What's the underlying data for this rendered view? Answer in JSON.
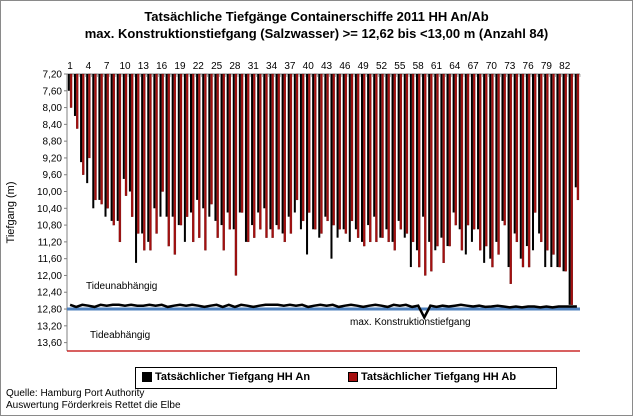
{
  "chart_data": {
    "type": "bar",
    "title": "Tatsächliche Tiefgänge Containerschiffe  2011 HH An/Ab",
    "subtitle": "max. Konstruktionstiefgang  (Salzwasser) >= 12,62 bis <13,00 m (Anzahl 84)",
    "ylabel": "Tiefgang (m)",
    "ylim": [
      7.2,
      13.8
    ],
    "y_inverted": true,
    "y_ticks": [
      "7,20",
      "7,60",
      "8,00",
      "8,40",
      "8,80",
      "9,20",
      "9,60",
      "10,00",
      "10,40",
      "10,80",
      "11,20",
      "11,60",
      "12,00",
      "12,40",
      "12,80",
      "13,20",
      "13,60"
    ],
    "x_ticks": [
      "1",
      "4",
      "7",
      "10",
      "13",
      "16",
      "19",
      "22",
      "25",
      "28",
      "31",
      "34",
      "37",
      "40",
      "43",
      "46",
      "49",
      "52",
      "55",
      "58",
      "61",
      "64",
      "67",
      "70",
      "73",
      "76",
      "79",
      "82"
    ],
    "categories": [
      1,
      2,
      3,
      4,
      5,
      6,
      7,
      8,
      9,
      10,
      11,
      12,
      13,
      14,
      15,
      16,
      17,
      18,
      19,
      20,
      21,
      22,
      23,
      24,
      25,
      26,
      27,
      28,
      29,
      30,
      31,
      32,
      33,
      34,
      35,
      36,
      37,
      38,
      39,
      40,
      41,
      42,
      43,
      44,
      45,
      46,
      47,
      48,
      49,
      50,
      51,
      52,
      53,
      54,
      55,
      56,
      57,
      58,
      59,
      60,
      61,
      62,
      63,
      64,
      65,
      66,
      67,
      68,
      69,
      70,
      71,
      72,
      73,
      74,
      75,
      76,
      77,
      78,
      79,
      80,
      81,
      82,
      83,
      84
    ],
    "series": [
      {
        "name": "Tatsächlicher Tiefgang HH An",
        "color": "#000000",
        "values": [
          7.6,
          8.2,
          9.3,
          9.8,
          10.4,
          10.2,
          10.6,
          10.7,
          10.7,
          9.7,
          10.0,
          11.7,
          11.0,
          11.2,
          10.4,
          10.6,
          10.6,
          10.6,
          10.8,
          11.2,
          10.5,
          10.2,
          10.4,
          10.6,
          10.7,
          10.8,
          10.5,
          10.9,
          10.5,
          11.2,
          10.8,
          10.5,
          10.4,
          10.9,
          10.8,
          11.0,
          10.6,
          10.5,
          10.9,
          11.5,
          10.9,
          11.1,
          10.6,
          11.6,
          11.1,
          10.9,
          11.2,
          10.9,
          11.2,
          10.8,
          10.6,
          11.1,
          10.9,
          11.2,
          10.7,
          11.1,
          11.8,
          11.4,
          10.6,
          11.2,
          11.4,
          11.1,
          11.3,
          10.5,
          10.9,
          11.5,
          11.2,
          10.9,
          11.7,
          11.6,
          11.2,
          10.7,
          11.8,
          11.0,
          11.6,
          11.3,
          11.4,
          11.0,
          11.8,
          11.8,
          11.8,
          11.9,
          12.7,
          9.9
        ]
      },
      {
        "name": "Tatsächlicher Tiefgang HH Ab",
        "color": "#a50f0f",
        "values": [
          8.0,
          8.5,
          9.6,
          9.2,
          10.2,
          10.3,
          10.4,
          10.8,
          11.2,
          10.1,
          10.6,
          11.0,
          11.4,
          11.4,
          11.0,
          10.0,
          11.3,
          11.5,
          10.8,
          10.6,
          11.2,
          11.1,
          11.4,
          10.3,
          11.1,
          11.4,
          10.9,
          12.0,
          10.5,
          11.2,
          11.1,
          10.9,
          11.1,
          11.1,
          10.9,
          11.2,
          11.0,
          10.2,
          10.7,
          10.5,
          10.9,
          11.0,
          10.7,
          10.8,
          10.9,
          11.0,
          10.7,
          11.1,
          11.3,
          11.2,
          11.2,
          11.1,
          11.2,
          11.4,
          10.9,
          11.0,
          11.2,
          11.8,
          12.0,
          11.9,
          11.3,
          11.7,
          11.3,
          10.8,
          11.4,
          10.8,
          10.9,
          11.4,
          11.3,
          11.8,
          11.5,
          10.8,
          12.2,
          11.2,
          11.8,
          11.8,
          10.5,
          11.2,
          11.4,
          11.5,
          11.8,
          11.9,
          12.7,
          10.2
        ]
      }
    ],
    "lines": [
      {
        "name": "Tideunabhängig",
        "color": "#000000",
        "values": [
          12.7,
          12.75,
          12.7,
          12.72,
          12.75,
          12.7,
          12.72,
          12.7,
          12.7,
          12.72,
          12.7,
          12.72,
          12.72,
          12.7,
          12.72,
          12.7,
          12.75,
          12.72,
          12.7,
          12.72,
          12.7,
          12.72,
          12.75,
          12.72,
          12.7,
          12.75,
          12.7,
          12.75,
          12.7,
          12.72,
          12.75,
          12.72,
          12.7,
          12.7,
          12.7,
          12.72,
          12.7,
          12.72,
          12.7,
          12.75,
          12.72,
          12.7,
          12.72,
          12.7,
          12.75,
          12.72,
          12.7,
          12.72,
          12.75,
          12.72,
          12.7,
          12.72,
          12.75,
          12.7,
          12.72,
          12.7,
          12.75,
          12.72,
          13.0,
          12.72,
          12.75,
          12.72,
          12.74,
          12.72,
          12.7,
          12.72,
          12.74,
          12.72,
          12.75,
          12.74,
          12.72,
          12.74,
          12.76,
          12.74,
          12.76,
          12.74,
          12.74,
          12.76,
          12.74,
          12.76,
          12.74,
          12.74,
          12.74,
          12.74
        ]
      },
      {
        "name": "max. Konstruktionstiefgang",
        "color": "#4f81bd",
        "value": 12.8
      },
      {
        "name": "Tideabhängig",
        "color": "#c00000",
        "value": 13.8
      }
    ],
    "annotations": [
      "Tideunabhängig",
      "max. Konstruktionstiefgang",
      "Tideabhängig"
    ],
    "grid": false,
    "legend_position": "bottom"
  },
  "source": {
    "line1": "Quelle: Hamburg Port Authority",
    "line2": "Auswertung Förderkreis Rettet die Elbe"
  }
}
